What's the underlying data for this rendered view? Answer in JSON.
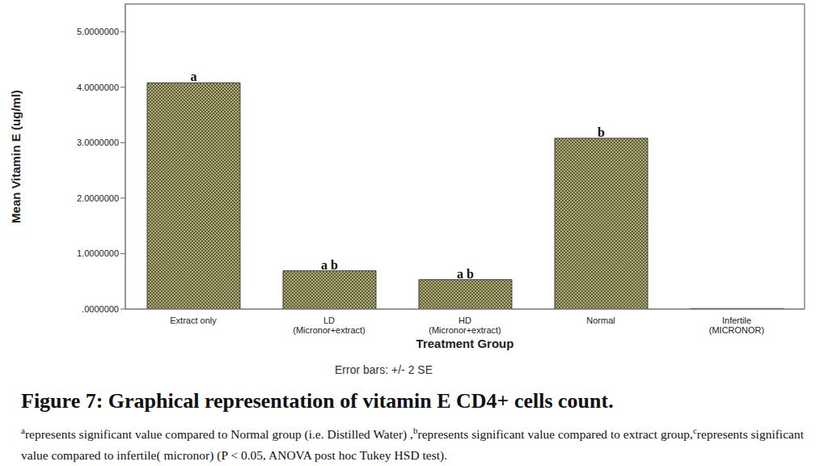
{
  "chart_data": {
    "type": "bar",
    "title": "Figure 7: Graphical representation of vitamin E  CD4+ cells count.",
    "categories": [
      "Extract only",
      "LD\n(Micronor+extract)",
      "HD\n(Micronor+extract)",
      "Normal",
      "Infertile\n(MICRONOR)"
    ],
    "values": [
      4.08,
      0.69,
      0.53,
      3.08,
      0.01
    ],
    "annotations": [
      "a",
      "a b",
      "a b",
      "b",
      null
    ],
    "color": "#b3ad74",
    "x_label": "Treatment Group",
    "y_label": "Mean Vitamin E (ug/ml)",
    "note": "Error bars: +/- 2 SE",
    "ylim": [
      0,
      5.5
    ],
    "yticks": [
      {
        "value": 0,
        "label": ".0000000"
      },
      {
        "value": 1,
        "label": "1.0000000"
      },
      {
        "value": 2,
        "label": "2.0000000"
      },
      {
        "value": 3,
        "label": "3.0000000"
      },
      {
        "value": 4,
        "label": "4.0000000"
      },
      {
        "value": 5,
        "label": "5.0000000"
      }
    ],
    "grid": false,
    "footnote": [
      {
        "sup": "a",
        "text": "represents significant value compared to Normal group (i.e. Distilled Water) ,"
      },
      {
        "sup": "b",
        "text": "represents significant value compared to extract group,"
      },
      {
        "sup": "c",
        "text": "represents significant value compared to infertile( micronor) (P < 0.05, ANOVA post hoc Tukey HSD test)."
      }
    ]
  }
}
